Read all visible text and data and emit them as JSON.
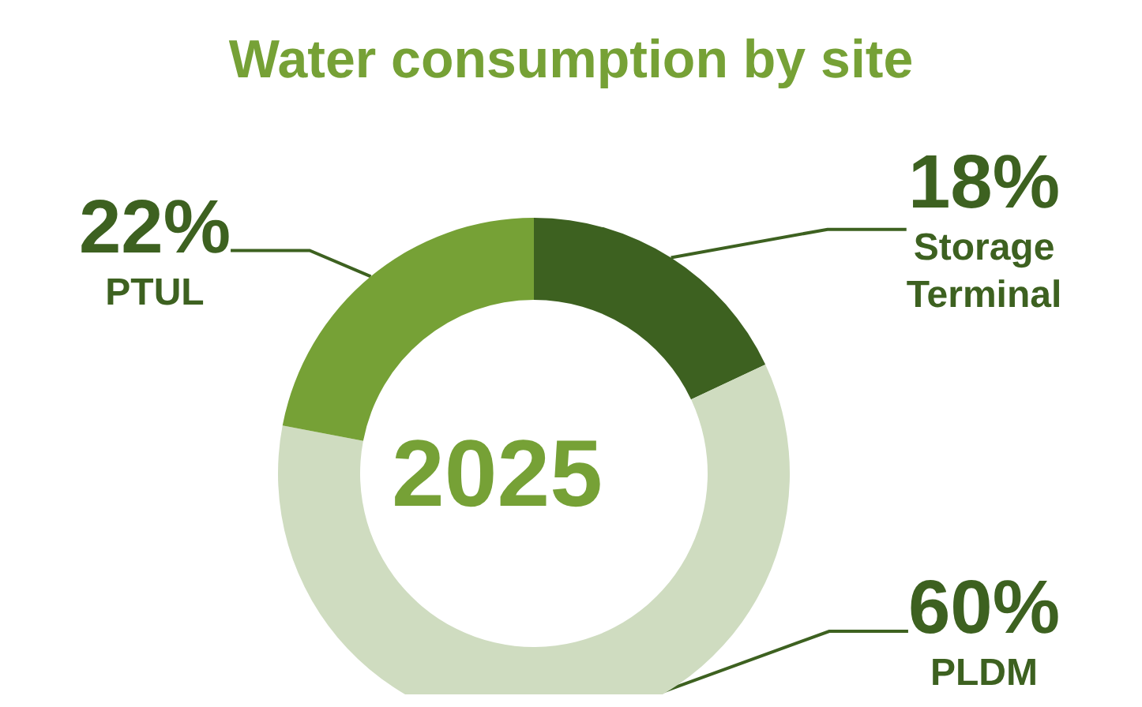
{
  "chart_data": {
    "type": "donut",
    "title": "Water consumption by site",
    "categories": [
      "Storage Terminal",
      "PLDM",
      "PTUL"
    ],
    "values": [
      18,
      60,
      22
    ],
    "value_labels": [
      "18%",
      "60%",
      "22%"
    ],
    "colors": [
      "#3d6120",
      "#cfdcc0",
      "#76a136"
    ],
    "annotations": [
      "2025"
    ],
    "legend": false
  }
}
